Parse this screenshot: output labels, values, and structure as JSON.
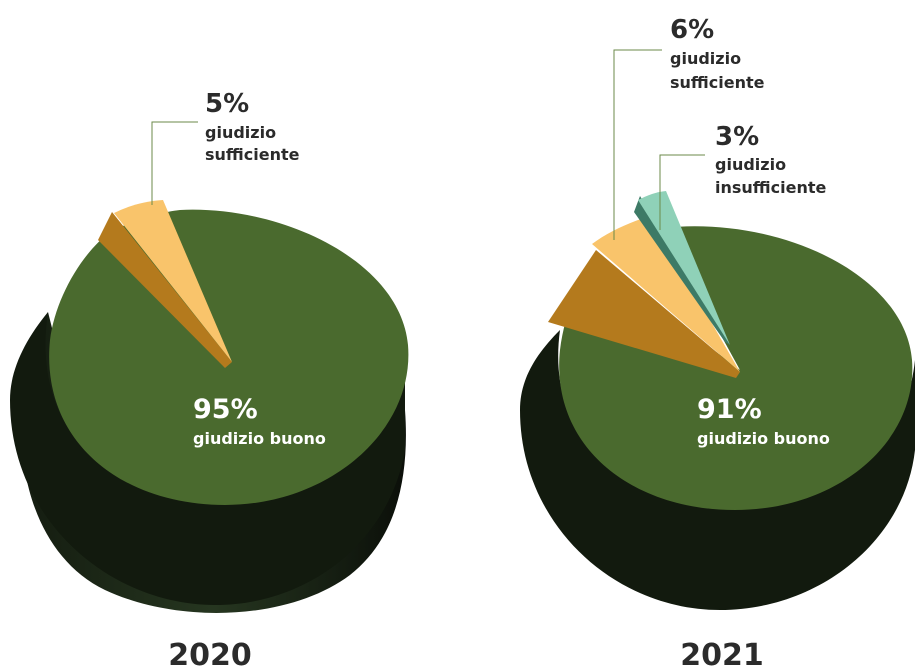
{
  "chart_data": [
    {
      "type": "pie",
      "title": "2020",
      "slices": [
        {
          "label": "giudizio buono",
          "value": 95,
          "value_label": "95%",
          "color": "#4a6a2e"
        },
        {
          "label": "giudizio sufficiente",
          "value": 5,
          "value_label": "5%",
          "color": "#f9c46b"
        }
      ]
    },
    {
      "type": "pie",
      "title": "2021",
      "slices": [
        {
          "label": "giudizio buono",
          "value": 91,
          "value_label": "91%",
          "color": "#4a6a2e"
        },
        {
          "label": "giudizio sufficiente",
          "value": 6,
          "value_label": "6%",
          "color": "#f9c46b"
        },
        {
          "label": "giudizio insufficiente",
          "value": 3,
          "value_label": "3%",
          "color": "#8fd1b8"
        }
      ]
    }
  ],
  "colors": {
    "green_top": "#4a6a2e",
    "green_side_light": "#2d3f21",
    "green_side_dark": "#0b0f09",
    "yellow_top": "#f9c46b",
    "yellow_side": "#b47a1d",
    "teal_top": "#8fd1b8",
    "teal_side": "#3d7a66",
    "leader_line": "#6b8a4a"
  }
}
